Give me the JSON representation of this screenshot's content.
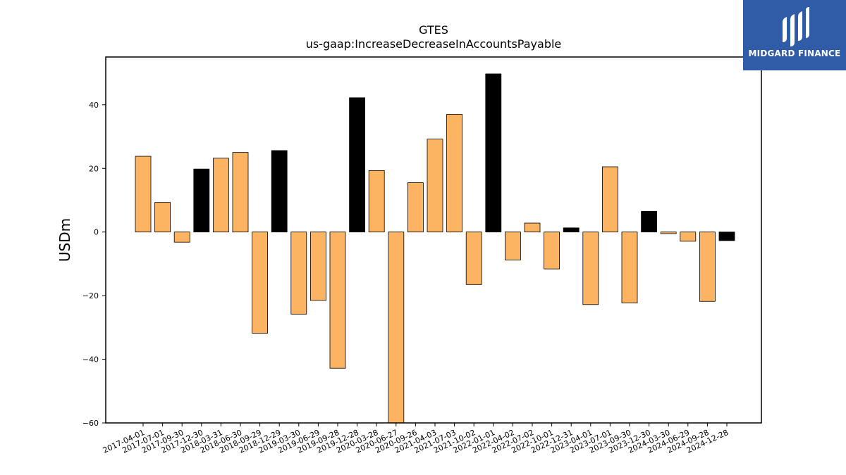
{
  "chart_data": {
    "type": "bar",
    "title": "GTES",
    "subtitle": "us-gaap:IncreaseDecreaseInAccountsPayable",
    "ylabel": "USDm",
    "xlabel": "",
    "ylim": [
      -60,
      55
    ],
    "yticks": [
      -60,
      -40,
      -20,
      0,
      20,
      40
    ],
    "ytick_labels": [
      "−60",
      "−40",
      "−20",
      "0",
      "20",
      "40"
    ],
    "grid": false,
    "categories": [
      "2017-04-01",
      "2017-07-01",
      "2017-09-30",
      "2017-12-30",
      "2018-03-31",
      "2018-06-30",
      "2018-09-29",
      "2018-12-29",
      "2019-03-30",
      "2019-06-29",
      "2019-09-28",
      "2019-12-28",
      "2020-03-28",
      "2020-06-27",
      "2020-09-26",
      "2021-04-03",
      "2021-07-03",
      "2021-10-02",
      "2022-01-01",
      "2022-04-02",
      "2022-07-02",
      "2022-10-01",
      "2022-12-31",
      "2023-04-01",
      "2023-07-01",
      "2023-09-30",
      "2023-12-30",
      "2024-03-30",
      "2024-06-29",
      "2024-09-28",
      "2024-12-28"
    ],
    "values": [
      23.8,
      9.3,
      -3.2,
      19.8,
      23.2,
      25.0,
      -31.8,
      25.6,
      -25.8,
      -21.5,
      -42.8,
      42.2,
      19.3,
      -60.0,
      15.5,
      29.2,
      37.0,
      -16.5,
      49.7,
      -8.8,
      2.8,
      -11.6,
      1.3,
      -22.8,
      20.5,
      -22.3,
      6.5,
      -0.5,
      -2.9,
      -21.8,
      -2.7
    ],
    "highlight": [
      false,
      false,
      false,
      true,
      false,
      false,
      false,
      true,
      false,
      false,
      false,
      true,
      false,
      false,
      false,
      false,
      false,
      false,
      true,
      false,
      false,
      false,
      true,
      false,
      false,
      false,
      true,
      false,
      false,
      false,
      true
    ],
    "colors": {
      "bar": "#fdb462",
      "highlight": "#000000",
      "edge": "#000000"
    }
  },
  "logo": {
    "text": "MIDGARD FINANCE",
    "background": "#2f5ba7"
  }
}
